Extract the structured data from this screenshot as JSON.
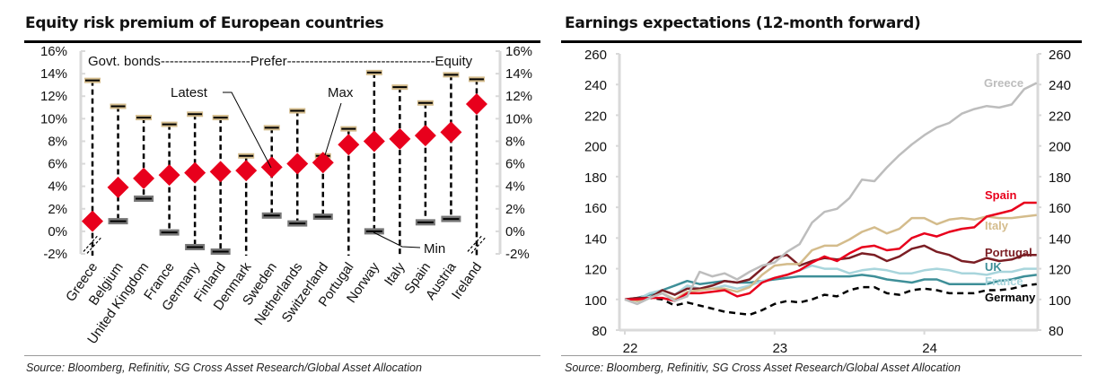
{
  "chart_data": [
    {
      "type": "range-dot",
      "title": "Equity risk premium of European countries",
      "xlabel": "",
      "ylabel": "",
      "ylim": [
        -2,
        16
      ],
      "yticks": [
        "-2%",
        "0%",
        "2%",
        "4%",
        "6%",
        "8%",
        "10%",
        "12%",
        "14%",
        "16%"
      ],
      "ytick_values": [
        -2,
        0,
        2,
        4,
        6,
        8,
        10,
        12,
        14,
        16
      ],
      "categories": [
        "Greece",
        "Belgium",
        "United Kingdom",
        "France",
        "Germany",
        "Finland",
        "Denmark",
        "Sweden",
        "Netherlands",
        "Switzerland",
        "Portugal",
        "Norway",
        "Italy",
        "Spain",
        "Austria",
        "Ireland"
      ],
      "series": [
        {
          "name": "Latest",
          "color": "#e8001c",
          "values": [
            0.9,
            3.9,
            4.7,
            5.0,
            5.2,
            5.3,
            5.4,
            5.7,
            6.0,
            6.1,
            7.7,
            8.0,
            8.2,
            8.5,
            8.8,
            11.3
          ]
        },
        {
          "name": "Max",
          "color": "#d4bc8c",
          "values": [
            13.4,
            11.1,
            10.1,
            9.5,
            10.4,
            10.1,
            6.7,
            9.2,
            10.7,
            6.7,
            9.1,
            14.1,
            12.8,
            11.4,
            13.9,
            13.5
          ]
        },
        {
          "name": "Min",
          "color": "#777777",
          "values": [
            null,
            0.9,
            2.9,
            -0.1,
            -1.4,
            -1.8,
            null,
            1.4,
            0.7,
            1.3,
            null,
            0.0,
            null,
            0.8,
            1.1,
            null
          ]
        }
      ],
      "broken_axis_categories": [
        "Greece",
        "Ireland"
      ],
      "annotations": {
        "header_text": "Govt. bonds--------------------Prefer---------------------------------Equity",
        "latest": "Latest",
        "max": "Max",
        "min": "Min"
      },
      "source": "Source: Bloomberg, Refinitiv, SG Cross Asset Research/Global Asset Allocation"
    },
    {
      "type": "line",
      "title": "Earnings expectations (12-month forward)",
      "xlabel": "",
      "ylabel": "",
      "ylim": [
        80,
        260
      ],
      "yticks": [
        "80",
        "100",
        "120",
        "140",
        "160",
        "180",
        "200",
        "220",
        "240",
        "260"
      ],
      "ytick_values": [
        80,
        100,
        120,
        140,
        160,
        180,
        200,
        220,
        240,
        260
      ],
      "xticks": [
        "22",
        "23",
        "24"
      ],
      "xtick_values": [
        0,
        12,
        24
      ],
      "xlim": [
        0,
        33.5
      ],
      "x": [
        0,
        1,
        2,
        3,
        4,
        5,
        6,
        7,
        8,
        9,
        10,
        11,
        12,
        13,
        14,
        15,
        16,
        17,
        18,
        19,
        20,
        21,
        22,
        23,
        24,
        25,
        26,
        27,
        28,
        29,
        30,
        31,
        32,
        33
      ],
      "series": [
        {
          "name": "Greece",
          "color": "#bdbdbd",
          "dashed": false,
          "values": [
            100,
            97,
            101,
            104,
            99,
            102,
            118,
            115,
            117,
            113,
            118,
            122,
            124,
            131,
            136,
            150,
            157,
            159,
            166,
            178,
            177,
            186,
            194,
            201,
            207,
            212,
            215,
            221,
            224,
            226,
            225,
            227,
            237,
            241
          ]
        },
        {
          "name": "Spain",
          "color": "#e8001c",
          "dashed": false,
          "values": [
            100,
            100,
            101,
            101,
            99,
            104,
            104,
            105,
            106,
            102,
            104,
            111,
            114,
            116,
            119,
            124,
            128,
            125,
            130,
            134,
            135,
            132,
            133,
            140,
            143,
            141,
            144,
            146,
            147,
            154,
            156,
            158,
            163,
            163
          ]
        },
        {
          "name": "Italy",
          "color": "#d4bc8c",
          "dashed": false,
          "values": [
            100,
            99,
            101,
            104,
            100,
            105,
            106,
            107,
            107,
            105,
            108,
            116,
            122,
            123,
            123,
            132,
            135,
            135,
            139,
            144,
            147,
            143,
            146,
            153,
            153,
            149,
            152,
            153,
            152,
            154,
            153,
            153,
            154,
            155
          ]
        },
        {
          "name": "Portugal",
          "color": "#7b1e24",
          "dashed": false,
          "values": [
            100,
            101,
            101,
            106,
            103,
            107,
            107,
            109,
            112,
            111,
            113,
            120,
            127,
            129,
            122,
            125,
            127,
            126,
            127,
            130,
            129,
            125,
            128,
            133,
            135,
            131,
            129,
            125,
            124,
            127,
            125,
            126,
            129,
            129
          ]
        },
        {
          "name": "UK",
          "color": "#3e8f98",
          "dashed": false,
          "values": [
            100,
            101,
            103,
            106,
            109,
            112,
            110,
            111,
            112,
            111,
            111,
            112,
            113,
            114,
            115,
            115,
            115,
            115,
            115,
            116,
            115,
            113,
            112,
            111,
            113,
            113,
            110,
            110,
            110,
            110,
            112,
            113,
            115,
            116
          ]
        },
        {
          "name": "France",
          "color": "#a8d5dc",
          "dashed": false,
          "values": [
            100,
            100,
            104,
            106,
            103,
            109,
            107,
            107,
            109,
            107,
            109,
            112,
            114,
            116,
            119,
            122,
            120,
            120,
            117,
            119,
            120,
            119,
            117,
            117,
            119,
            120,
            119,
            117,
            117,
            116,
            118,
            118,
            120,
            120
          ]
        },
        {
          "name": "Germany",
          "color": "#000000",
          "dashed": true,
          "values": [
            100,
            99,
            101,
            100,
            96,
            98,
            96,
            94,
            92,
            91,
            90,
            93,
            97,
            99,
            98,
            100,
            103,
            102,
            106,
            108,
            108,
            104,
            103,
            106,
            107,
            106,
            104,
            104,
            104,
            106,
            106,
            107,
            109,
            110
          ]
        }
      ],
      "legend": "inline-right",
      "source": "Source: Bloomberg, Refinitiv, SG Cross Asset Research/Global Asset Allocation"
    }
  ]
}
